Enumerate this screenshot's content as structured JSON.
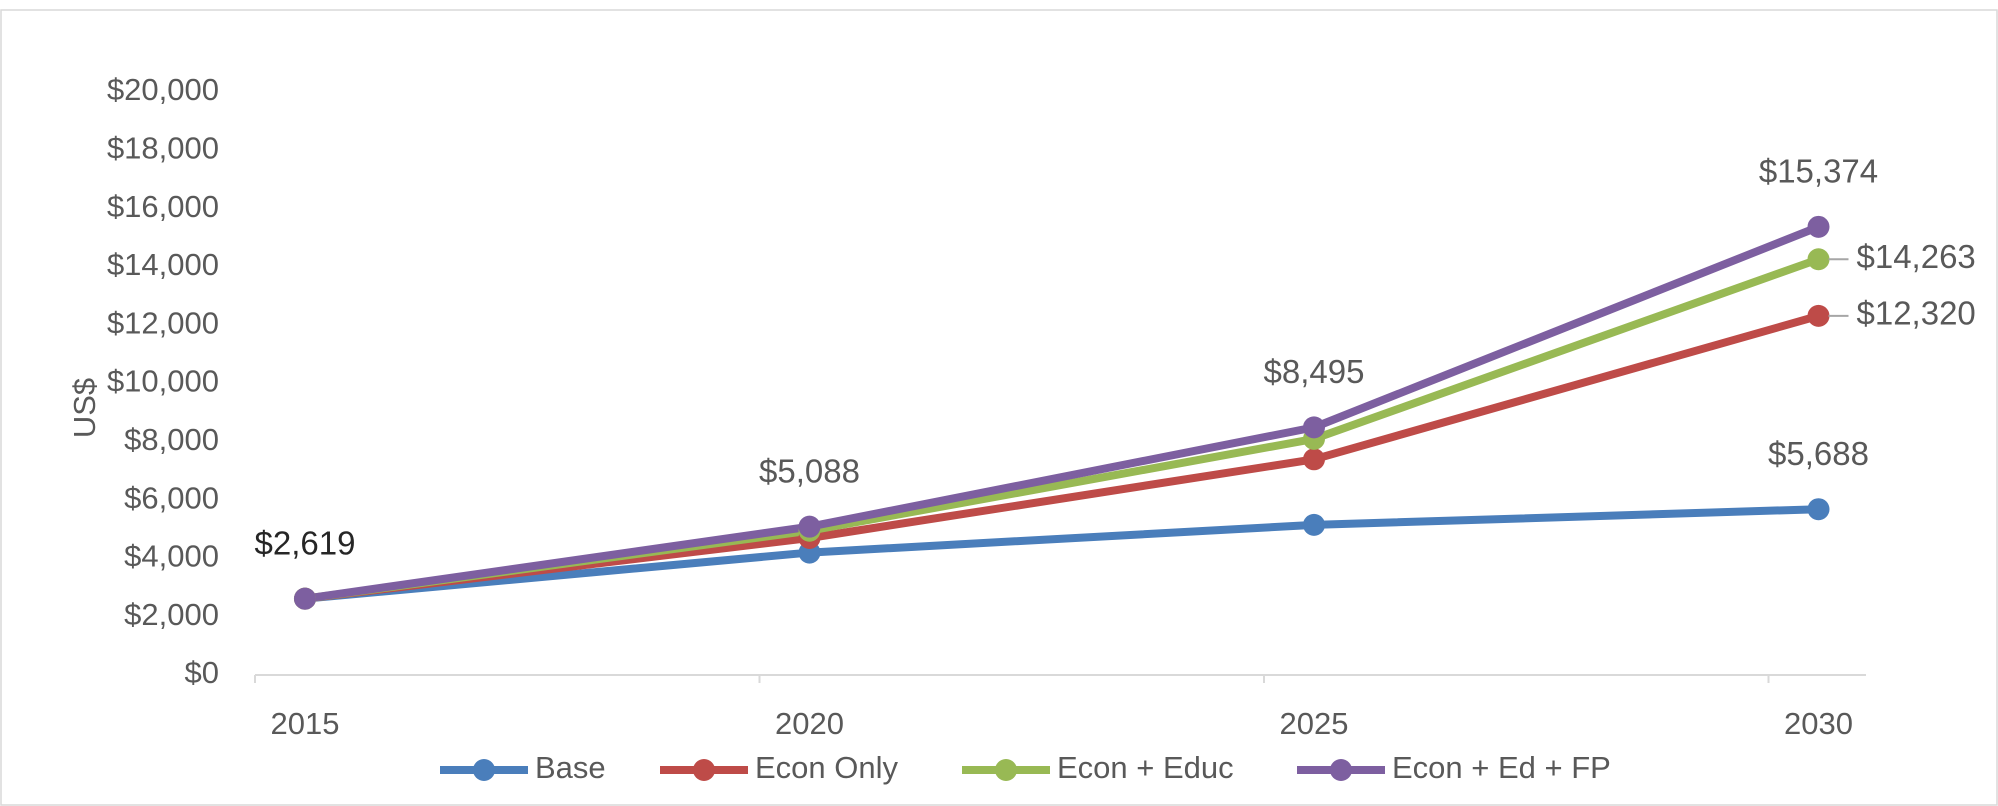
{
  "chart_data": {
    "type": "line",
    "y_label": "US$",
    "categories": [
      "2015",
      "2020",
      "2025",
      "2030"
    ],
    "series": [
      {
        "name": "Base",
        "color": "#4a7ebb",
        "values": [
          2619,
          4200,
          5150,
          5688
        ],
        "value_labels": [
          "$2,619",
          null,
          null,
          "$5,688"
        ]
      },
      {
        "name": "Econ Only",
        "color": "#be4b48",
        "values": [
          2619,
          4700,
          7400,
          12320
        ],
        "value_labels": [
          null,
          null,
          null,
          "$12,320"
        ]
      },
      {
        "name": "Econ + Educ",
        "color": "#98b954",
        "values": [
          2619,
          4950,
          8100,
          14263
        ],
        "value_labels": [
          null,
          null,
          null,
          "$14,263"
        ]
      },
      {
        "name": "Econ + Ed + FP",
        "color": "#7d5fa0",
        "values": [
          2619,
          5088,
          8495,
          15374
        ],
        "value_labels": [
          null,
          "$5,088",
          "$8,495",
          "$15,374"
        ]
      }
    ],
    "ylim": [
      0,
      20000
    ],
    "yticks": [
      {
        "value": 0,
        "label": "$0"
      },
      {
        "value": 2000,
        "label": "$2,000"
      },
      {
        "value": 4000,
        "label": "$4,000"
      },
      {
        "value": 6000,
        "label": "$6,000"
      },
      {
        "value": 8000,
        "label": "$8,000"
      },
      {
        "value": 10000,
        "label": "$10,000"
      },
      {
        "value": 12000,
        "label": "$12,000"
      },
      {
        "value": 14000,
        "label": "$14,000"
      },
      {
        "value": 16000,
        "label": "$16,000"
      },
      {
        "value": 18000,
        "label": "$18,000"
      },
      {
        "value": 20000,
        "label": "$20,000"
      }
    ],
    "grid": false,
    "legend": "bottom"
  }
}
